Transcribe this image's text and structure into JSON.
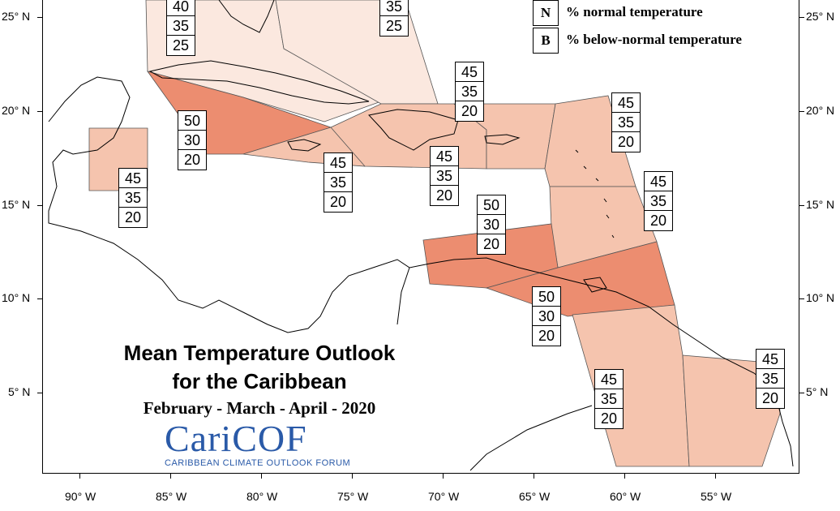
{
  "map": {
    "title_line1": "Mean Temperature Outlook",
    "title_line2": "for the Caribbean",
    "period": "February - March - April - 2020",
    "logo": "CariCOF",
    "logo_subtitle": "CARIBBEAN CLIMATE OUTLOOK FORUM",
    "legend": [
      {
        "key": "N",
        "label": "% normal temperature"
      },
      {
        "key": "B",
        "label": "% below-normal temperature"
      }
    ],
    "lat_labels": [
      "25° N",
      "20° N",
      "15° N",
      "10° N",
      "5° N"
    ],
    "lon_labels": [
      "90° W",
      "85° W",
      "80° W",
      "75° W",
      "70° W",
      "65° W",
      "60° W",
      "55° W"
    ],
    "colors": {
      "light": "#fbe8df",
      "mid": "#f5c4ae",
      "dark": "#ec8d70"
    },
    "probability_boxes": [
      {
        "region": "bahamas-north",
        "values": [
          "40",
          "35",
          "25"
        ]
      },
      {
        "region": "bahamas-south",
        "values": [
          "35",
          "25"
        ]
      },
      {
        "region": "belize",
        "values": [
          "45",
          "35",
          "20"
        ]
      },
      {
        "region": "cuba-west",
        "values": [
          "50",
          "30",
          "20"
        ]
      },
      {
        "region": "jamaica",
        "values": [
          "45",
          "35",
          "20"
        ]
      },
      {
        "region": "hispaniola",
        "values": [
          "45",
          "35",
          "20"
        ]
      },
      {
        "region": "puerto-rico",
        "values": [
          "45",
          "35",
          "20"
        ]
      },
      {
        "region": "leeward-islands",
        "values": [
          "45",
          "35",
          "20"
        ]
      },
      {
        "region": "windward-islands",
        "values": [
          "45",
          "35",
          "20"
        ]
      },
      {
        "region": "abc-islands",
        "values": [
          "50",
          "30",
          "20"
        ]
      },
      {
        "region": "trinidad",
        "values": [
          "50",
          "30",
          "20"
        ]
      },
      {
        "region": "guyana",
        "values": [
          "45",
          "35",
          "20"
        ]
      },
      {
        "region": "suriname-guiana",
        "values": [
          "45",
          "35",
          "20"
        ]
      }
    ]
  }
}
